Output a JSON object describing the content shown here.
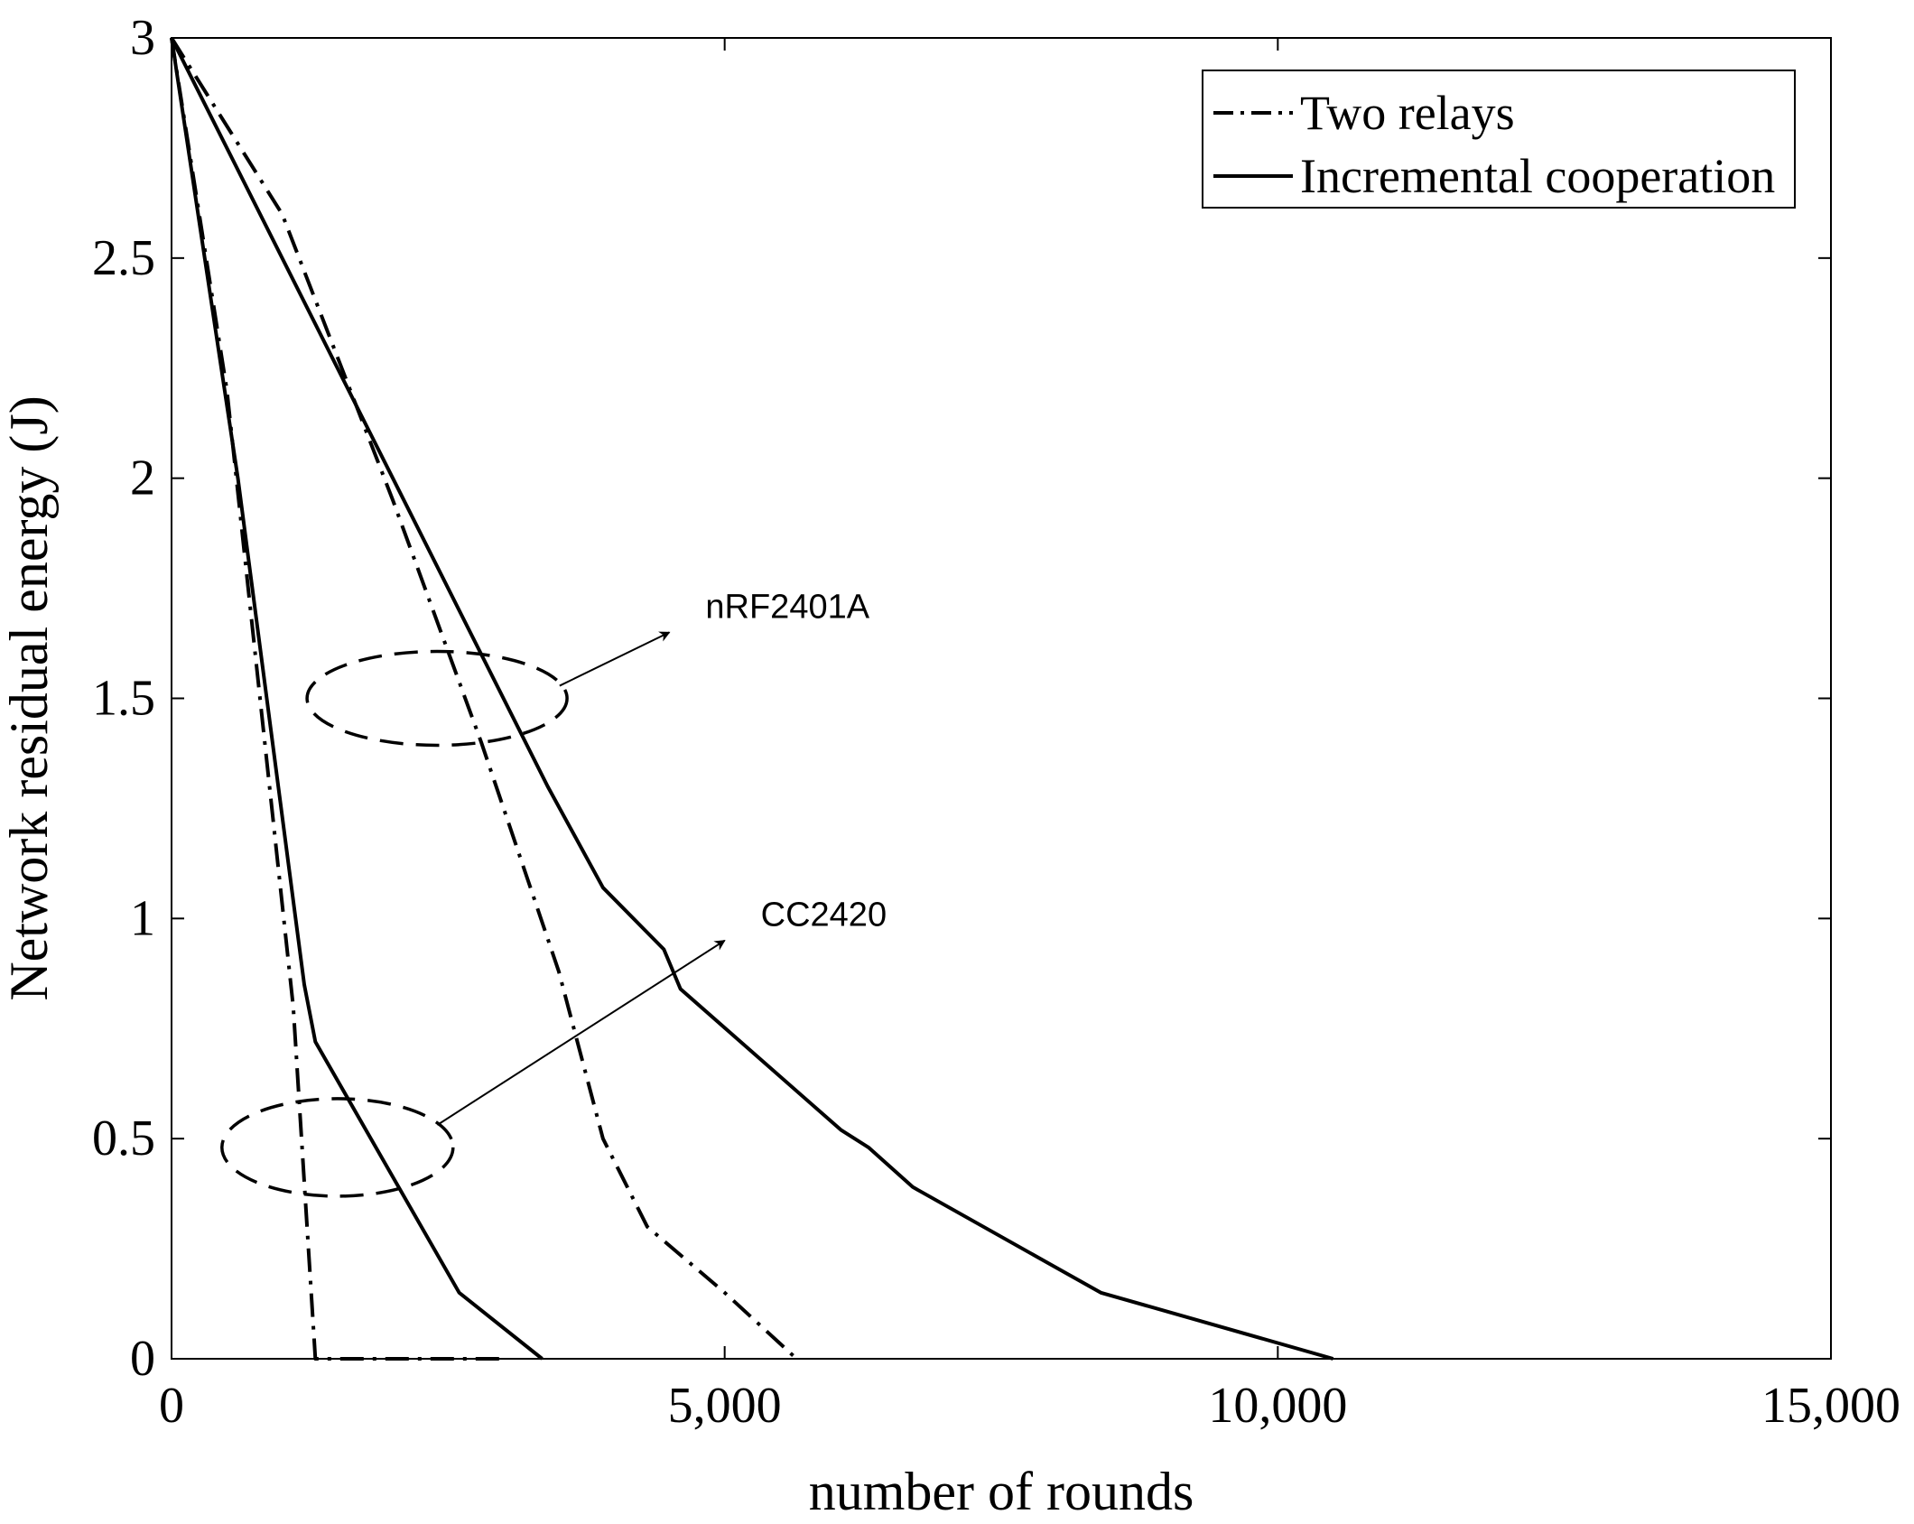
{
  "chart_data": {
    "type": "line",
    "title": "",
    "xlabel": "number of rounds",
    "ylabel": "Network residual energy (J)",
    "xlim": [
      0,
      15000
    ],
    "ylim": [
      0,
      3
    ],
    "xticks": [
      0,
      5000,
      10000,
      15000
    ],
    "xtick_labels": [
      "0",
      "5,000",
      "10,000",
      "15,000"
    ],
    "yticks": [
      0,
      0.5,
      1,
      1.5,
      2,
      2.5,
      3
    ],
    "ytick_labels": [
      "0",
      "0.5",
      "1",
      "1.5",
      "2",
      "2.5",
      "3"
    ],
    "grid": false,
    "legend": {
      "placement": "top-right",
      "entries": [
        {
          "label": "Two relays",
          "style": "dashdot"
        },
        {
          "label": "Incremental cooperation",
          "style": "solid"
        }
      ]
    },
    "series": [
      {
        "name": "Two relays",
        "group": "CC2420",
        "style": "dashdot",
        "color": "#000000",
        "points": [
          [
            0,
            3
          ],
          [
            500,
            2.2
          ],
          [
            800,
            1.5
          ],
          [
            1100,
            0.8
          ],
          [
            1300,
            0.0
          ],
          [
            3000,
            0.0
          ]
        ]
      },
      {
        "name": "Incremental cooperation",
        "group": "CC2420",
        "style": "solid",
        "color": "#000000",
        "points": [
          [
            0,
            3
          ],
          [
            600,
            2.0
          ],
          [
            1200,
            0.85
          ],
          [
            1300,
            0.72
          ],
          [
            2600,
            0.15
          ],
          [
            3350,
            0.0
          ]
        ]
      },
      {
        "name": "Two relays",
        "group": "nRF2401A",
        "style": "dashdot",
        "color": "#000000",
        "points": [
          [
            0,
            3
          ],
          [
            1000,
            2.6
          ],
          [
            2000,
            1.95
          ],
          [
            2800,
            1.4
          ],
          [
            3500,
            0.88
          ],
          [
            3900,
            0.5
          ],
          [
            4300,
            0.3
          ],
          [
            5000,
            0.15
          ],
          [
            5650,
            0.0
          ]
        ]
      },
      {
        "name": "Incremental cooperation",
        "group": "nRF2401A",
        "style": "solid",
        "color": "#000000",
        "points": [
          [
            0,
            3
          ],
          [
            2000,
            2.0
          ],
          [
            3400,
            1.3
          ],
          [
            3900,
            1.07
          ],
          [
            4450,
            0.93
          ],
          [
            4600,
            0.84
          ],
          [
            6050,
            0.52
          ],
          [
            6300,
            0.48
          ],
          [
            6700,
            0.39
          ],
          [
            8400,
            0.15
          ],
          [
            10500,
            0.0
          ]
        ]
      }
    ],
    "annotations": [
      {
        "text": "nRF2401A",
        "ellipse_center": [
          2400,
          1.5
        ],
        "target": [
          4500,
          1.65
        ]
      },
      {
        "text": "CC2420",
        "ellipse_center": [
          1500,
          0.48
        ],
        "target": [
          5000,
          0.95
        ]
      }
    ]
  }
}
